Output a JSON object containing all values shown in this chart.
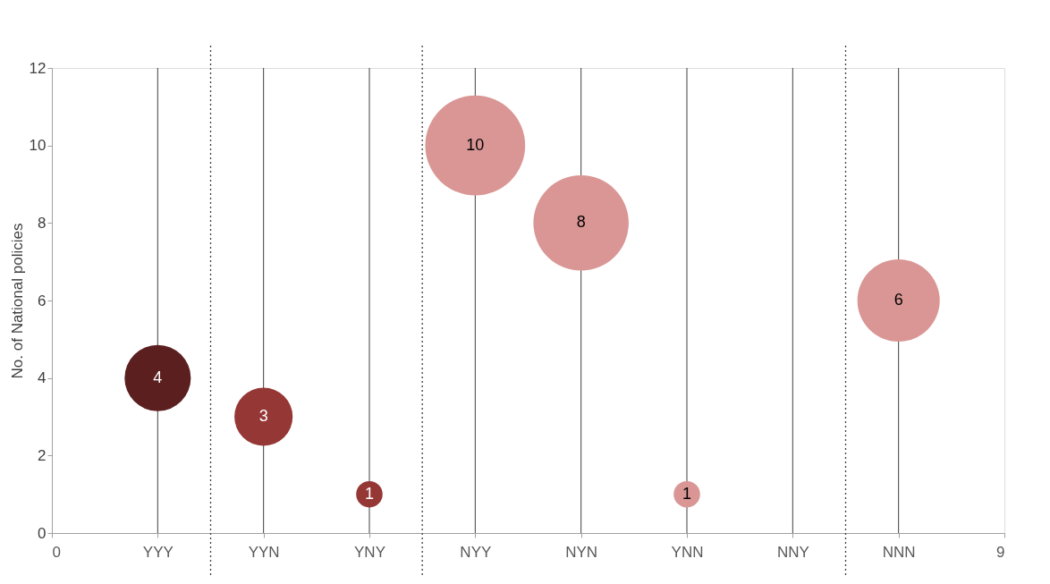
{
  "chart_data": {
    "type": "bubble",
    "ylabel": "No. of National policies",
    "x": [
      1,
      2,
      3,
      4,
      5,
      6,
      8
    ],
    "values": [
      4,
      3,
      1,
      10,
      8,
      1,
      6
    ],
    "sizes": [
      0.44,
      0.34,
      0.07,
      1,
      0.91,
      0.07,
      0.68
    ],
    "colors": [
      "#5c1f1f",
      "#953735",
      "#953735",
      "#d99694",
      "#d99694",
      "#d99694",
      "#d99694"
    ],
    "data_labels": true,
    "xlim": [
      0,
      9
    ],
    "xticks": [
      0,
      {
        "value": 1,
        "label": "YYY"
      },
      {
        "value": 2,
        "label": "YYN"
      },
      {
        "value": 3,
        "label": "YNY"
      },
      {
        "value": 4,
        "label": "NYY"
      },
      {
        "value": 5,
        "label": "NYN"
      },
      {
        "value": 6,
        "label": "YNN"
      },
      {
        "value": 7,
        "label": "NNY"
      },
      {
        "value": 8,
        "label": "NNN"
      },
      9
    ],
    "ylim": [
      0,
      12
    ],
    "yticks": [
      0,
      2,
      4,
      6,
      8,
      10,
      12
    ],
    "grid": false,
    "ref_lines": [
      {
        "axis": "x",
        "value": 1,
        "color": "#404040",
        "line_style": "solid"
      },
      {
        "axis": "x",
        "value": 2,
        "color": "#404040",
        "line_style": "solid"
      },
      {
        "axis": "x",
        "value": 3,
        "color": "#404040",
        "line_style": "solid"
      },
      {
        "axis": "x",
        "value": 4,
        "color": "#404040",
        "line_style": "solid"
      },
      {
        "axis": "x",
        "value": 5,
        "color": "#404040",
        "line_style": "solid"
      },
      {
        "axis": "x",
        "value": 6,
        "color": "#404040",
        "line_style": "solid"
      },
      {
        "axis": "x",
        "value": 7,
        "color": "#404040",
        "line_style": "solid"
      },
      {
        "axis": "x",
        "value": 8,
        "color": "#404040",
        "line_style": "solid"
      },
      {
        "axis": "x",
        "value": 1.5,
        "color": "#404040",
        "line_style": "dotted"
      },
      {
        "axis": "x",
        "value": 3.5,
        "color": "#404040",
        "line_style": "dotted"
      },
      {
        "axis": "x",
        "value": 7.5,
        "color": "#404040",
        "line_style": "dotted"
      }
    ]
  }
}
